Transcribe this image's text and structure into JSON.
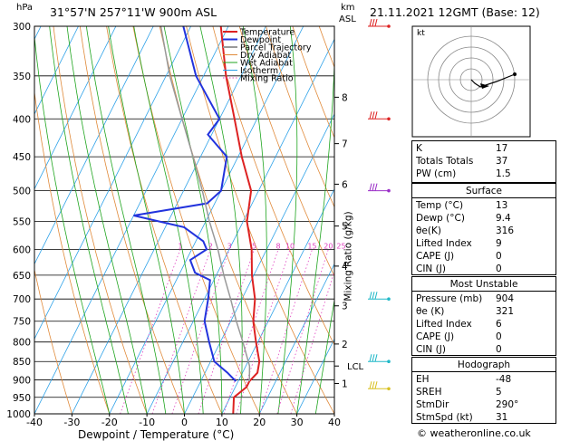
{
  "header": {
    "units_p": "hPa",
    "location": "31°57'N  257°11'W  900m  ASL",
    "units_km": "km",
    "units_asl": "ASL",
    "datetime": "21.11.2021  12GMT  (Base: 12)"
  },
  "chart_data": {
    "type": "skew-t",
    "xlabel": "Dewpoint / Temperature (°C)",
    "ylabel_right": "Mixing Ratio (g/kg)",
    "xlim": [
      -40,
      40
    ],
    "ylim_hpa": [
      1000,
      300
    ],
    "pressure_ticks": [
      300,
      350,
      400,
      450,
      500,
      550,
      600,
      650,
      700,
      750,
      800,
      850,
      900,
      950,
      1000
    ],
    "temp_ticks": [
      -40,
      -30,
      -20,
      -10,
      0,
      10,
      20,
      30,
      40
    ],
    "km_ticks": [
      {
        "km": "1",
        "p": 910
      },
      {
        "km": "2",
        "p": 805
      },
      {
        "km": "3",
        "p": 715
      },
      {
        "km": "4",
        "p": 632
      },
      {
        "km": "5",
        "p": 558
      },
      {
        "km": "6",
        "p": 490
      },
      {
        "km": "7",
        "p": 432
      },
      {
        "km": "8",
        "p": 374
      }
    ],
    "lcl": {
      "label": "LCL",
      "p": 862
    },
    "mixing_ratio_labels": [
      "1",
      "2",
      "3",
      "5",
      "8",
      "10",
      "15",
      "20",
      "25"
    ],
    "legend": [
      "Temperature",
      "Dewpoint",
      "Parcel Trajectory",
      "Dry Adiabat",
      "Wet Adiabat",
      "Isotherm",
      "Mixing Ratio"
    ],
    "series": [
      {
        "name": "Temperature",
        "color": "#dd2222",
        "points": [
          [
            1000,
            13
          ],
          [
            950,
            11
          ],
          [
            920,
            13
          ],
          [
            904,
            13
          ],
          [
            880,
            14
          ],
          [
            850,
            13
          ],
          [
            800,
            9.5
          ],
          [
            750,
            6
          ],
          [
            700,
            3.5
          ],
          [
            650,
            -0.5
          ],
          [
            600,
            -4
          ],
          [
            550,
            -9
          ],
          [
            500,
            -12
          ],
          [
            450,
            -19
          ],
          [
            400,
            -26
          ],
          [
            350,
            -34
          ],
          [
            300,
            -42
          ]
        ]
      },
      {
        "name": "Dewpoint",
        "color": "#2233dd",
        "points": [
          [
            904,
            9.4
          ],
          [
            880,
            6
          ],
          [
            850,
            1
          ],
          [
            800,
            -3
          ],
          [
            750,
            -7
          ],
          [
            700,
            -9
          ],
          [
            660,
            -11
          ],
          [
            645,
            -16
          ],
          [
            620,
            -19
          ],
          [
            600,
            -16
          ],
          [
            585,
            -18
          ],
          [
            560,
            -25
          ],
          [
            540,
            -40
          ],
          [
            520,
            -22
          ],
          [
            500,
            -20
          ],
          [
            450,
            -23
          ],
          [
            420,
            -31
          ],
          [
            400,
            -30
          ],
          [
            350,
            -42
          ],
          [
            300,
            -52
          ]
        ]
      },
      {
        "name": "Parcel Trajectory",
        "color": "#999999",
        "points": [
          [
            904,
            13
          ],
          [
            862,
            11
          ],
          [
            800,
            6
          ],
          [
            750,
            1.5
          ],
          [
            700,
            -3
          ],
          [
            650,
            -8
          ],
          [
            600,
            -13
          ],
          [
            550,
            -19
          ],
          [
            500,
            -25
          ],
          [
            450,
            -32
          ],
          [
            400,
            -40
          ],
          [
            350,
            -49
          ],
          [
            300,
            -58
          ]
        ]
      }
    ],
    "hodograph": {
      "label": "kt"
    }
  },
  "indices": {
    "k": {
      "label": "K",
      "value": "17"
    },
    "tt": {
      "label": "Totals Totals",
      "value": "37"
    },
    "pw": {
      "label": "PW (cm)",
      "value": "1.5"
    }
  },
  "surface": {
    "title": "Surface",
    "rows": [
      {
        "label": "Temp (°C)",
        "value": "13"
      },
      {
        "label": "Dewp (°C)",
        "value": "9.4"
      },
      {
        "label": "θe(K)",
        "value": "316"
      },
      {
        "label": "Lifted Index",
        "value": "9"
      },
      {
        "label": "CAPE (J)",
        "value": "0"
      },
      {
        "label": "CIN (J)",
        "value": "0"
      }
    ]
  },
  "most_unstable": {
    "title": "Most Unstable",
    "rows": [
      {
        "label": "Pressure (mb)",
        "value": "904"
      },
      {
        "label": "θe (K)",
        "value": "321"
      },
      {
        "label": "Lifted Index",
        "value": "6"
      },
      {
        "label": "CAPE (J)",
        "value": "0"
      },
      {
        "label": "CIN (J)",
        "value": "0"
      }
    ]
  },
  "hodograph_table": {
    "title": "Hodograph",
    "rows": [
      {
        "label": "EH",
        "value": "-48"
      },
      {
        "label": "SREH",
        "value": "5"
      },
      {
        "label": "StmDir",
        "value": "290°"
      },
      {
        "label": "StmSpd (kt)",
        "value": "31"
      }
    ]
  },
  "footer": {
    "copyright": "© weatheronline.co.uk"
  },
  "colors": {
    "temp": "#dd2222",
    "dew": "#2233dd",
    "parcel": "#999999",
    "dry": "#e08a3a",
    "wet": "#1fa51f",
    "isotherm": "#2aa0e8",
    "mixing": "#e040c0",
    "wind_violet": "#9b30c8",
    "wind_cyan": "#20b8c8",
    "wind_red": "#dd2222",
    "wind_yellow": "#d8c020"
  }
}
